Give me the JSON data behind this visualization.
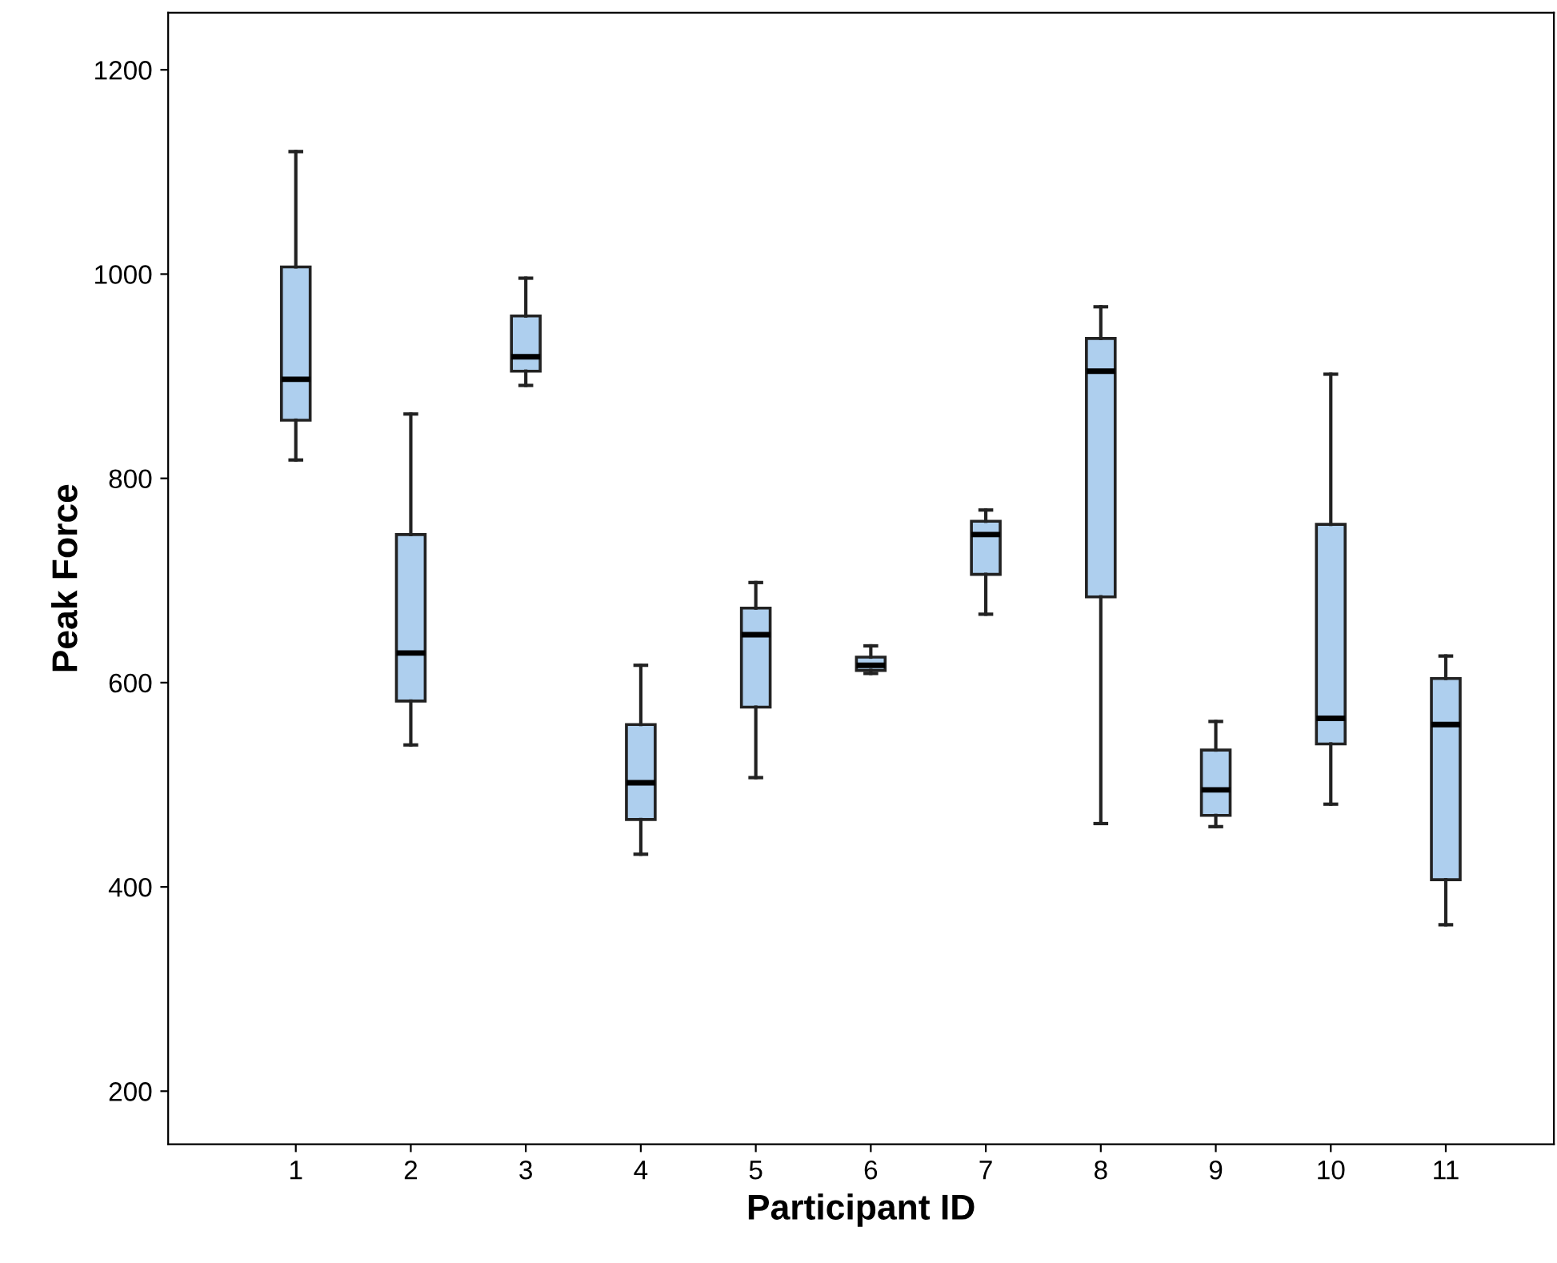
{
  "chart_data": {
    "type": "box",
    "xlabel": "Participant ID",
    "ylabel": "Peak Force",
    "categories": [
      "1",
      "2",
      "3",
      "4",
      "5",
      "6",
      "7",
      "8",
      "9",
      "10",
      "11"
    ],
    "color": "#aecfee",
    "ylim": [
      148,
      1256
    ],
    "yticks": [
      200,
      400,
      600,
      800,
      1000,
      1200
    ],
    "grid": false,
    "legend": false,
    "boxes": [
      {
        "low": 818,
        "q1": 857,
        "median": 897,
        "q3": 1007,
        "high": 1120
      },
      {
        "low": 539,
        "q1": 582,
        "median": 629,
        "q3": 745,
        "high": 863
      },
      {
        "low": 891,
        "q1": 905,
        "median": 919,
        "q3": 959,
        "high": 996
      },
      {
        "low": 432,
        "q1": 466,
        "median": 502,
        "q3": 559,
        "high": 617
      },
      {
        "low": 507,
        "q1": 576,
        "median": 647,
        "q3": 673,
        "high": 698
      },
      {
        "low": 609,
        "q1": 612,
        "median": 617,
        "q3": 625,
        "high": 636
      },
      {
        "low": 667,
        "q1": 706,
        "median": 745,
        "q3": 758,
        "high": 769
      },
      {
        "low": 462,
        "q1": 684,
        "median": 905,
        "q3": 937,
        "high": 968
      },
      {
        "low": 459,
        "q1": 470,
        "median": 495,
        "q3": 534,
        "high": 562
      },
      {
        "low": 481,
        "q1": 540,
        "median": 565,
        "q3": 755,
        "high": 902
      },
      {
        "low": 363,
        "q1": 407,
        "median": 559,
        "q3": 604,
        "high": 626
      }
    ]
  }
}
